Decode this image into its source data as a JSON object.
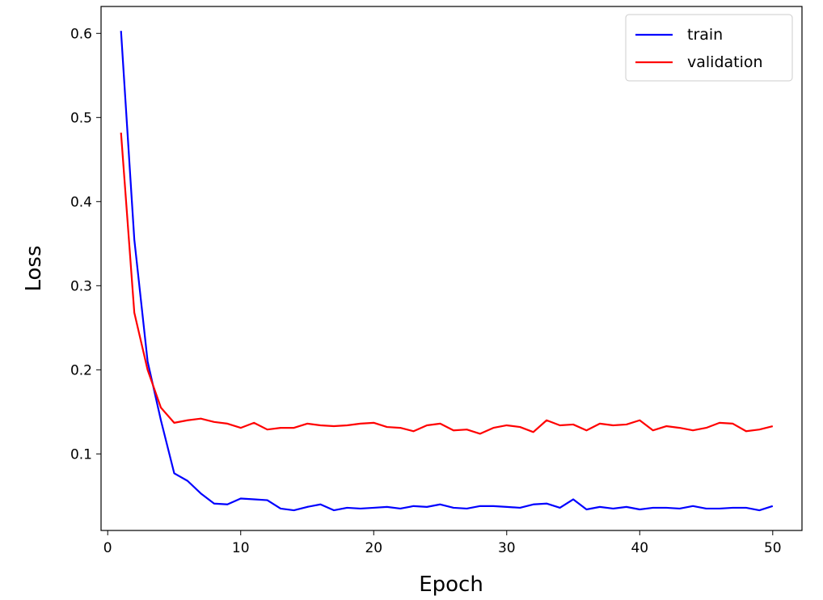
{
  "chart_data": {
    "type": "line",
    "xlabel": "Epoch",
    "ylabel": "Loss",
    "xlim": [
      -0.5,
      52.2
    ],
    "ylim": [
      0.009,
      0.632
    ],
    "xticks": [
      0,
      10,
      20,
      30,
      40,
      50
    ],
    "yticks": [
      0.1,
      0.2,
      0.3,
      0.4,
      0.5,
      0.6
    ],
    "grid": false,
    "legend": "top-right",
    "x": [
      1,
      2,
      3,
      4,
      5,
      6,
      7,
      8,
      9,
      10,
      11,
      12,
      13,
      14,
      15,
      16,
      17,
      18,
      19,
      20,
      21,
      22,
      23,
      24,
      25,
      26,
      27,
      28,
      29,
      30,
      31,
      32,
      33,
      34,
      35,
      36,
      37,
      38,
      39,
      40,
      41,
      42,
      43,
      44,
      45,
      46,
      47,
      48,
      49,
      50
    ],
    "series": [
      {
        "name": "train",
        "color": "#0000ff",
        "values": [
          0.603,
          0.355,
          0.21,
          0.14,
          0.077,
          0.068,
          0.053,
          0.041,
          0.04,
          0.047,
          0.046,
          0.045,
          0.035,
          0.033,
          0.037,
          0.04,
          0.033,
          0.036,
          0.035,
          0.036,
          0.037,
          0.035,
          0.038,
          0.037,
          0.04,
          0.036,
          0.035,
          0.038,
          0.038,
          0.037,
          0.036,
          0.04,
          0.041,
          0.036,
          0.046,
          0.034,
          0.037,
          0.035,
          0.037,
          0.034,
          0.036,
          0.036,
          0.035,
          0.038,
          0.035,
          0.035,
          0.036,
          0.036,
          0.033,
          0.038
        ]
      },
      {
        "name": "validation",
        "color": "#ff0000",
        "values": [
          0.482,
          0.268,
          0.2,
          0.155,
          0.137,
          0.14,
          0.142,
          0.138,
          0.136,
          0.131,
          0.137,
          0.129,
          0.131,
          0.131,
          0.136,
          0.134,
          0.133,
          0.134,
          0.136,
          0.137,
          0.132,
          0.131,
          0.127,
          0.134,
          0.136,
          0.128,
          0.129,
          0.124,
          0.131,
          0.134,
          0.132,
          0.126,
          0.14,
          0.134,
          0.135,
          0.128,
          0.136,
          0.134,
          0.135,
          0.14,
          0.128,
          0.133,
          0.131,
          0.128,
          0.131,
          0.137,
          0.136,
          0.127,
          0.129,
          0.133
        ]
      }
    ]
  }
}
